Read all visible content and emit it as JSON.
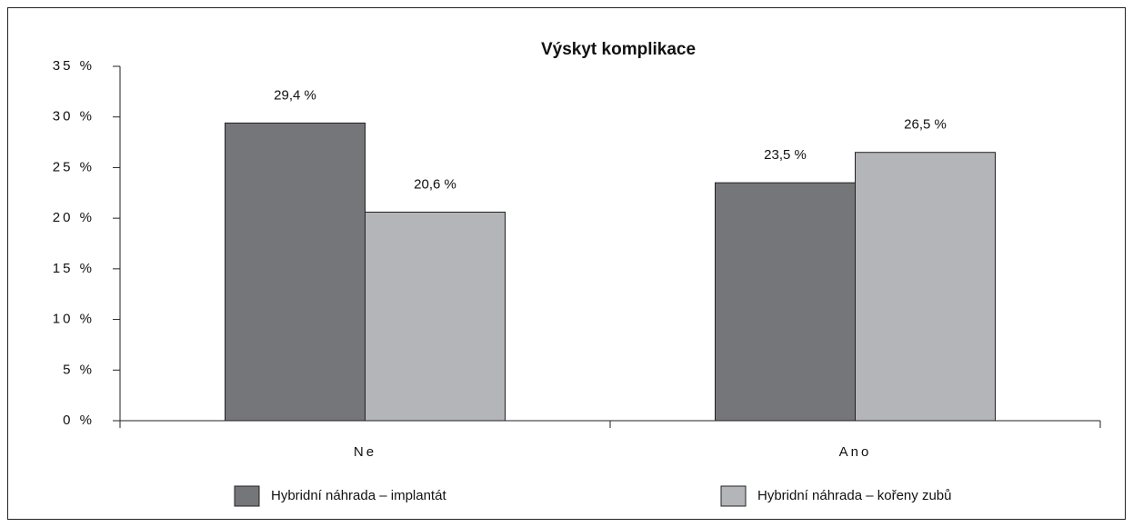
{
  "chart_data": {
    "type": "bar",
    "title": "Výskyt komplikace",
    "categories": [
      "Ne",
      "Ano"
    ],
    "series": [
      {
        "name": "Hybridní náhrada – implantát",
        "color": "#75767a",
        "values": [
          29.4,
          23.5
        ],
        "value_labels": [
          "29,4 %",
          "23,5 %"
        ]
      },
      {
        "name": "Hybridní náhrada – kořeny zubů",
        "color": "#b4b5b9",
        "values": [
          20.6,
          26.5
        ],
        "value_labels": [
          "20,6 %",
          "26,5 %"
        ]
      }
    ],
    "ylim": [
      0,
      35
    ],
    "yticks": [
      {
        "value": 0,
        "label": "0 %"
      },
      {
        "value": 5,
        "label": "5 %"
      },
      {
        "value": 10,
        "label": "10 %"
      },
      {
        "value": 15,
        "label": "15 %"
      },
      {
        "value": 20,
        "label": "20 %"
      },
      {
        "value": 25,
        "label": "25 %"
      },
      {
        "value": 30,
        "label": "30 %"
      },
      {
        "value": 35,
        "label": "35 %"
      }
    ],
    "grid": false,
    "legend": "bottom"
  }
}
